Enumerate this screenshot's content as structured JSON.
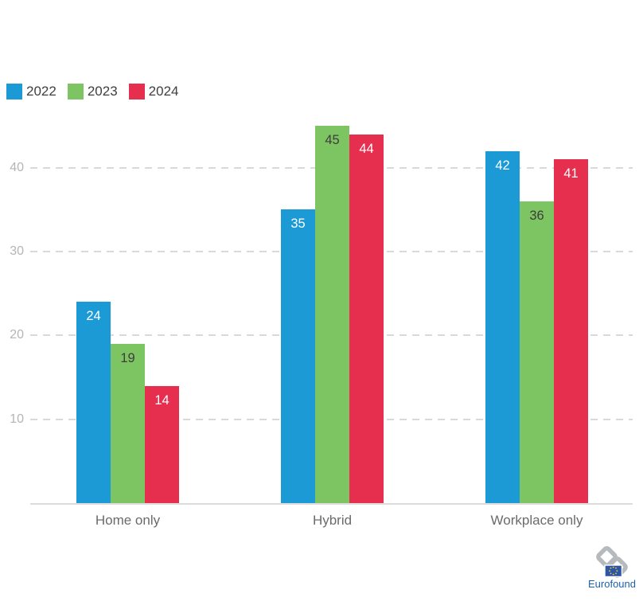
{
  "chart_data": {
    "type": "bar",
    "title": "",
    "categories": [
      "Home only",
      "Hybrid",
      "Workplace only"
    ],
    "series": [
      {
        "name": "2022",
        "color": "#1c9ad6",
        "label_color": "#ffffff",
        "values": [
          24,
          35,
          42
        ]
      },
      {
        "name": "2023",
        "color": "#7dc462",
        "label_color": "#3d3d3d",
        "values": [
          19,
          45,
          36
        ]
      },
      {
        "name": "2024",
        "color": "#e62e4f",
        "label_color": "#ffffff",
        "values": [
          14,
          44,
          41
        ]
      }
    ],
    "xlabel": "",
    "ylabel": "",
    "y_axis": {
      "ticks": [
        10,
        20,
        30,
        40
      ],
      "min": 0,
      "max": 45,
      "grid": "dashed"
    },
    "legend_position": "top-left",
    "value_labels": "inside-top"
  },
  "footer": {
    "logo_text": "Eurofound"
  }
}
